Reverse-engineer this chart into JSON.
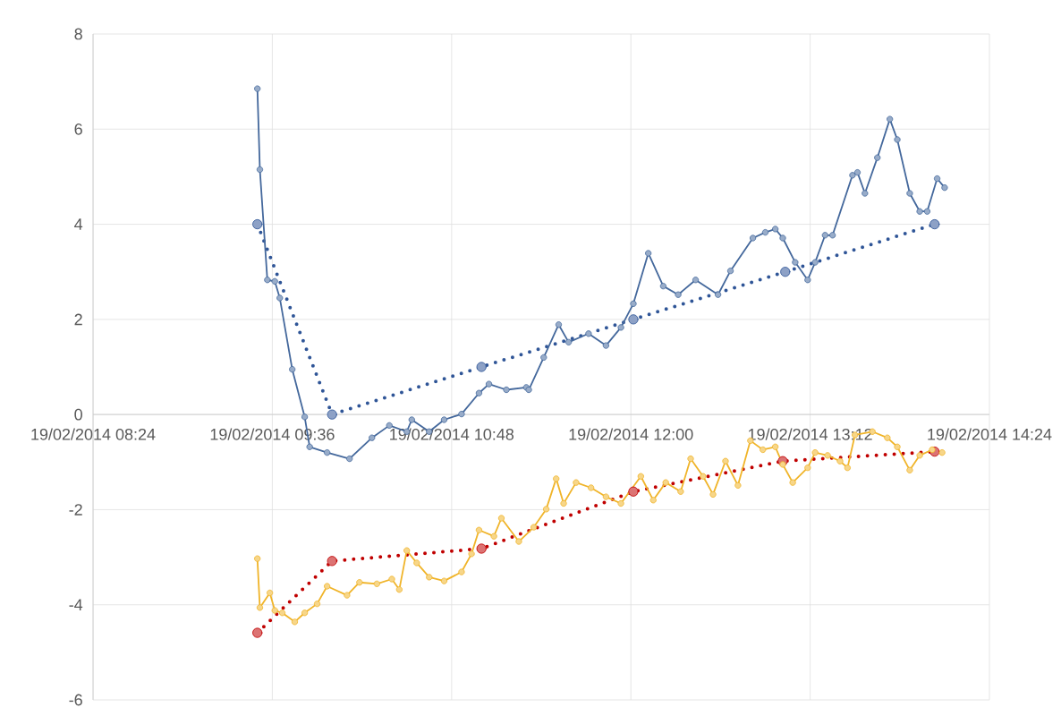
{
  "chart_data": {
    "type": "line",
    "xlim": [
      "2014-02-19T08:24",
      "2014-02-19T14:24"
    ],
    "ylim": [
      -6,
      8
    ],
    "xticks": [
      {
        "value": "2014-02-19T08:24",
        "label": "19/02/2014 08:24"
      },
      {
        "value": "2014-02-19T09:36",
        "label": "19/02/2014 09:36"
      },
      {
        "value": "2014-02-19T10:48",
        "label": "19/02/2014 10:48"
      },
      {
        "value": "2014-02-19T12:00",
        "label": "19/02/2014 12:00"
      },
      {
        "value": "2014-02-19T13:12",
        "label": "19/02/2014 13:12"
      },
      {
        "value": "2014-02-19T14:24",
        "label": "19/02/2014 14:24"
      }
    ],
    "yticks": [
      -6,
      -4,
      -2,
      0,
      2,
      4,
      6,
      8
    ],
    "grid": true,
    "series": [
      {
        "color": "#44689c",
        "marker": "circle",
        "line_style": "solid",
        "x": [
          "2014-02-19T09:30",
          "2014-02-19T09:31",
          "2014-02-19T09:34",
          "2014-02-19T09:37",
          "2014-02-19T09:39",
          "2014-02-19T09:44",
          "2014-02-19T09:49",
          "2014-02-19T09:51",
          "2014-02-19T09:58",
          "2014-02-19T10:07",
          "2014-02-19T10:16",
          "2014-02-19T10:23",
          "2014-02-19T10:30",
          "2014-02-19T10:32",
          "2014-02-19T10:39",
          "2014-02-19T10:45",
          "2014-02-19T10:52",
          "2014-02-19T10:59",
          "2014-02-19T11:03",
          "2014-02-19T11:10",
          "2014-02-19T11:18",
          "2014-02-19T11:19",
          "2014-02-19T11:25",
          "2014-02-19T11:31",
          "2014-02-19T11:35",
          "2014-02-19T11:43",
          "2014-02-19T11:50",
          "2014-02-19T11:56",
          "2014-02-19T12:01",
          "2014-02-19T12:07",
          "2014-02-19T12:13",
          "2014-02-19T12:19",
          "2014-02-19T12:26",
          "2014-02-19T12:35",
          "2014-02-19T12:40",
          "2014-02-19T12:49",
          "2014-02-19T12:54",
          "2014-02-19T12:58",
          "2014-02-19T13:01",
          "2014-02-19T13:06",
          "2014-02-19T13:11",
          "2014-02-19T13:14",
          "2014-02-19T13:18",
          "2014-02-19T13:21",
          "2014-02-19T13:29",
          "2014-02-19T13:31",
          "2014-02-19T13:34",
          "2014-02-19T13:39",
          "2014-02-19T13:44",
          "2014-02-19T13:47",
          "2014-02-19T13:52",
          "2014-02-19T13:56",
          "2014-02-19T13:59",
          "2014-02-19T14:03",
          "2014-02-19T14:06"
        ],
        "values": [
          6.85,
          5.15,
          2.83,
          2.8,
          2.45,
          0.95,
          -0.05,
          -0.68,
          -0.8,
          -0.93,
          -0.49,
          -0.23,
          -0.36,
          -0.11,
          -0.36,
          -0.11,
          0.01,
          0.45,
          0.64,
          0.52,
          0.57,
          0.52,
          1.2,
          1.89,
          1.52,
          1.7,
          1.45,
          1.83,
          2.33,
          3.39,
          2.7,
          2.52,
          2.83,
          2.52,
          3.02,
          3.71,
          3.83,
          3.9,
          3.71,
          3.2,
          2.83,
          3.2,
          3.77,
          3.77,
          5.03,
          5.09,
          4.65,
          5.4,
          6.21,
          5.78,
          4.65,
          4.27,
          4.27,
          4.96,
          4.77
        ]
      },
      {
        "color": "#2f5597",
        "marker": "circle",
        "line_style": "dotted",
        "x": [
          "2014-02-19T09:30",
          "2014-02-19T10:00",
          "2014-02-19T11:00",
          "2014-02-19T12:01",
          "2014-02-19T13:02",
          "2014-02-19T14:02"
        ],
        "values": [
          4,
          0,
          1,
          2,
          3,
          4
        ]
      },
      {
        "color": "#f0b429",
        "marker": "circle",
        "line_style": "solid",
        "x": [
          "2014-02-19T09:30",
          "2014-02-19T09:31",
          "2014-02-19T09:35",
          "2014-02-19T09:37",
          "2014-02-19T09:40",
          "2014-02-19T09:45",
          "2014-02-19T09:49",
          "2014-02-19T09:54",
          "2014-02-19T09:58",
          "2014-02-19T10:06",
          "2014-02-19T10:11",
          "2014-02-19T10:18",
          "2014-02-19T10:24",
          "2014-02-19T10:27",
          "2014-02-19T10:30",
          "2014-02-19T10:34",
          "2014-02-19T10:39",
          "2014-02-19T10:45",
          "2014-02-19T10:52",
          "2014-02-19T10:56",
          "2014-02-19T10:59",
          "2014-02-19T11:05",
          "2014-02-19T11:08",
          "2014-02-19T11:15",
          "2014-02-19T11:21",
          "2014-02-19T11:26",
          "2014-02-19T11:30",
          "2014-02-19T11:33",
          "2014-02-19T11:38",
          "2014-02-19T11:44",
          "2014-02-19T11:50",
          "2014-02-19T11:56",
          "2014-02-19T12:04",
          "2014-02-19T12:09",
          "2014-02-19T12:14",
          "2014-02-19T12:20",
          "2014-02-19T12:24",
          "2014-02-19T12:29",
          "2014-02-19T12:33",
          "2014-02-19T12:38",
          "2014-02-19T12:43",
          "2014-02-19T12:48",
          "2014-02-19T12:53",
          "2014-02-19T12:58",
          "2014-02-19T13:01",
          "2014-02-19T13:05",
          "2014-02-19T13:11",
          "2014-02-19T13:14",
          "2014-02-19T13:19",
          "2014-02-19T13:24",
          "2014-02-19T13:27",
          "2014-02-19T13:30",
          "2014-02-19T13:37",
          "2014-02-19T13:43",
          "2014-02-19T13:47",
          "2014-02-19T13:52",
          "2014-02-19T13:56",
          "2014-02-19T14:01",
          "2014-02-19T14:05"
        ],
        "values": [
          -3.03,
          -4.06,
          -3.75,
          -4.12,
          -4.17,
          -4.36,
          -4.17,
          -3.98,
          -3.61,
          -3.8,
          -3.53,
          -3.56,
          -3.46,
          -3.68,
          -2.86,
          -3.12,
          -3.42,
          -3.5,
          -3.31,
          -2.93,
          -2.43,
          -2.56,
          -2.18,
          -2.67,
          -2.37,
          -1.99,
          -1.35,
          -1.87,
          -1.43,
          -1.54,
          -1.73,
          -1.87,
          -1.3,
          -1.8,
          -1.43,
          -1.62,
          -0.93,
          -1.3,
          -1.68,
          -0.98,
          -1.49,
          -0.55,
          -0.74,
          -0.68,
          -1.05,
          -1.43,
          -1.12,
          -0.8,
          -0.86,
          -0.98,
          -1.12,
          -0.43,
          -0.36,
          -0.49,
          -0.68,
          -1.17,
          -0.86,
          -0.74,
          -0.8
        ]
      },
      {
        "color": "#c00000",
        "marker": "circle",
        "line_style": "dotted",
        "x": [
          "2014-02-19T09:30",
          "2014-02-19T10:00",
          "2014-02-19T11:00",
          "2014-02-19T12:01",
          "2014-02-19T13:01",
          "2014-02-19T14:02"
        ],
        "values": [
          -4.59,
          -3.08,
          -2.82,
          -1.62,
          -0.98,
          -0.78
        ]
      }
    ]
  }
}
